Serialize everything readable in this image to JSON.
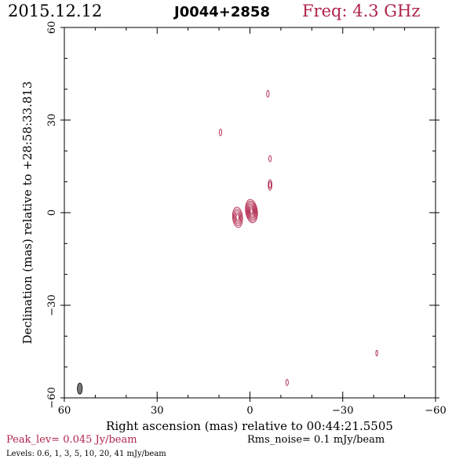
{
  "header": {
    "date": "2015.12.12",
    "source": "J0044+2858",
    "freq": "Freq: 4.3 GHz"
  },
  "footer": {
    "peak": "Peak_lev=  0.045 Jy/beam",
    "rms": "Rms_noise=   0.1 mJy/beam",
    "levels": "Levels: 0.6,    1,    3,    5,   10,   20,   41  mJy/beam"
  },
  "colors": {
    "contour": "#b0234a",
    "beam": "#777777",
    "axes": "#000000"
  },
  "chart_data": {
    "type": "contour",
    "xlabel": "Right ascension (mas) relative to 00:44:21.5505",
    "ylabel": "Declination (mas) relative to +28:58:33.813",
    "xlim": [
      60,
      -60
    ],
    "ylim": [
      -60,
      60
    ],
    "xticks": [
      60,
      30,
      0,
      -30,
      -60
    ],
    "yticks": [
      -60,
      -30,
      0,
      30,
      60
    ],
    "xtick_labels": [
      "60",
      "30",
      "0",
      "−30",
      "−60"
    ],
    "ytick_labels": [
      "−60",
      "−30",
      "0",
      "30",
      "60"
    ],
    "levels_mJy": [
      0.6,
      1,
      3,
      5,
      10,
      20,
      41
    ],
    "components": [
      {
        "x": -0.5,
        "y": 0.5,
        "a": 3.8,
        "b": 1.9,
        "pa": 8,
        "n": 7
      },
      {
        "x": 4.0,
        "y": -1.5,
        "a": 3.3,
        "b": 1.6,
        "pa": 5,
        "n": 5
      },
      {
        "x": -6.5,
        "y": 9.0,
        "a": 1.7,
        "b": 0.6,
        "pa": 0,
        "n": 2
      },
      {
        "x": -6.5,
        "y": 17.5,
        "a": 1.0,
        "b": 0.4,
        "pa": 0,
        "n": 1
      },
      {
        "x": -5.8,
        "y": 38.5,
        "a": 1.1,
        "b": 0.4,
        "pa": 0,
        "n": 1
      },
      {
        "x": 9.5,
        "y": 26.0,
        "a": 1.1,
        "b": 0.4,
        "pa": 0,
        "n": 1
      },
      {
        "x": -12.0,
        "y": -55.0,
        "a": 1.0,
        "b": 0.4,
        "pa": 0,
        "n": 1
      },
      {
        "x": -41.0,
        "y": -45.5,
        "a": 0.9,
        "b": 0.3,
        "pa": 0,
        "n": 1
      }
    ],
    "beam": {
      "x": 55.0,
      "y": -57.0,
      "a": 1.8,
      "b": 0.8,
      "pa": 0
    }
  }
}
